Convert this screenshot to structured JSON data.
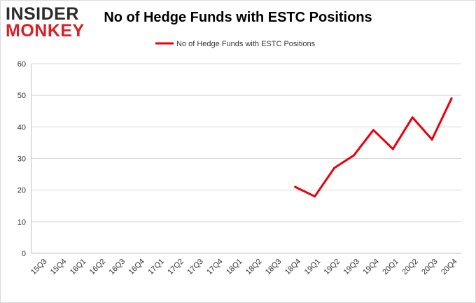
{
  "logo": {
    "line1": "INSIDER",
    "line2": "MONKEY"
  },
  "chart_data": {
    "type": "line",
    "title": "No of Hedge Funds with ESTC Positions",
    "xlabel": "",
    "ylabel": "",
    "categories": [
      "15Q3",
      "15Q4",
      "16Q1",
      "16Q2",
      "16Q3",
      "16Q4",
      "17Q1",
      "17Q2",
      "17Q3",
      "17Q4",
      "18Q1",
      "18Q2",
      "18Q3",
      "18Q4",
      "19Q1",
      "19Q2",
      "19Q3",
      "19Q4",
      "20Q1",
      "20Q2",
      "20Q3",
      "20Q4"
    ],
    "series": [
      {
        "name": "No of Hedge Funds with ESTC Positions",
        "color": "#e8000b",
        "values": [
          null,
          null,
          null,
          null,
          null,
          null,
          null,
          null,
          null,
          null,
          null,
          null,
          null,
          21,
          18,
          27,
          31,
          39,
          33,
          43,
          36,
          49
        ]
      }
    ],
    "ylim": [
      0,
      60
    ],
    "yticks": [
      0,
      10,
      20,
      30,
      40,
      50,
      60
    ],
    "grid": true,
    "legend": "top-center",
    "colors": {
      "line": "#e8000b",
      "grid": "#d9d9d9",
      "logo_dark": "#2b2b2b",
      "logo_red": "#d72027"
    }
  }
}
